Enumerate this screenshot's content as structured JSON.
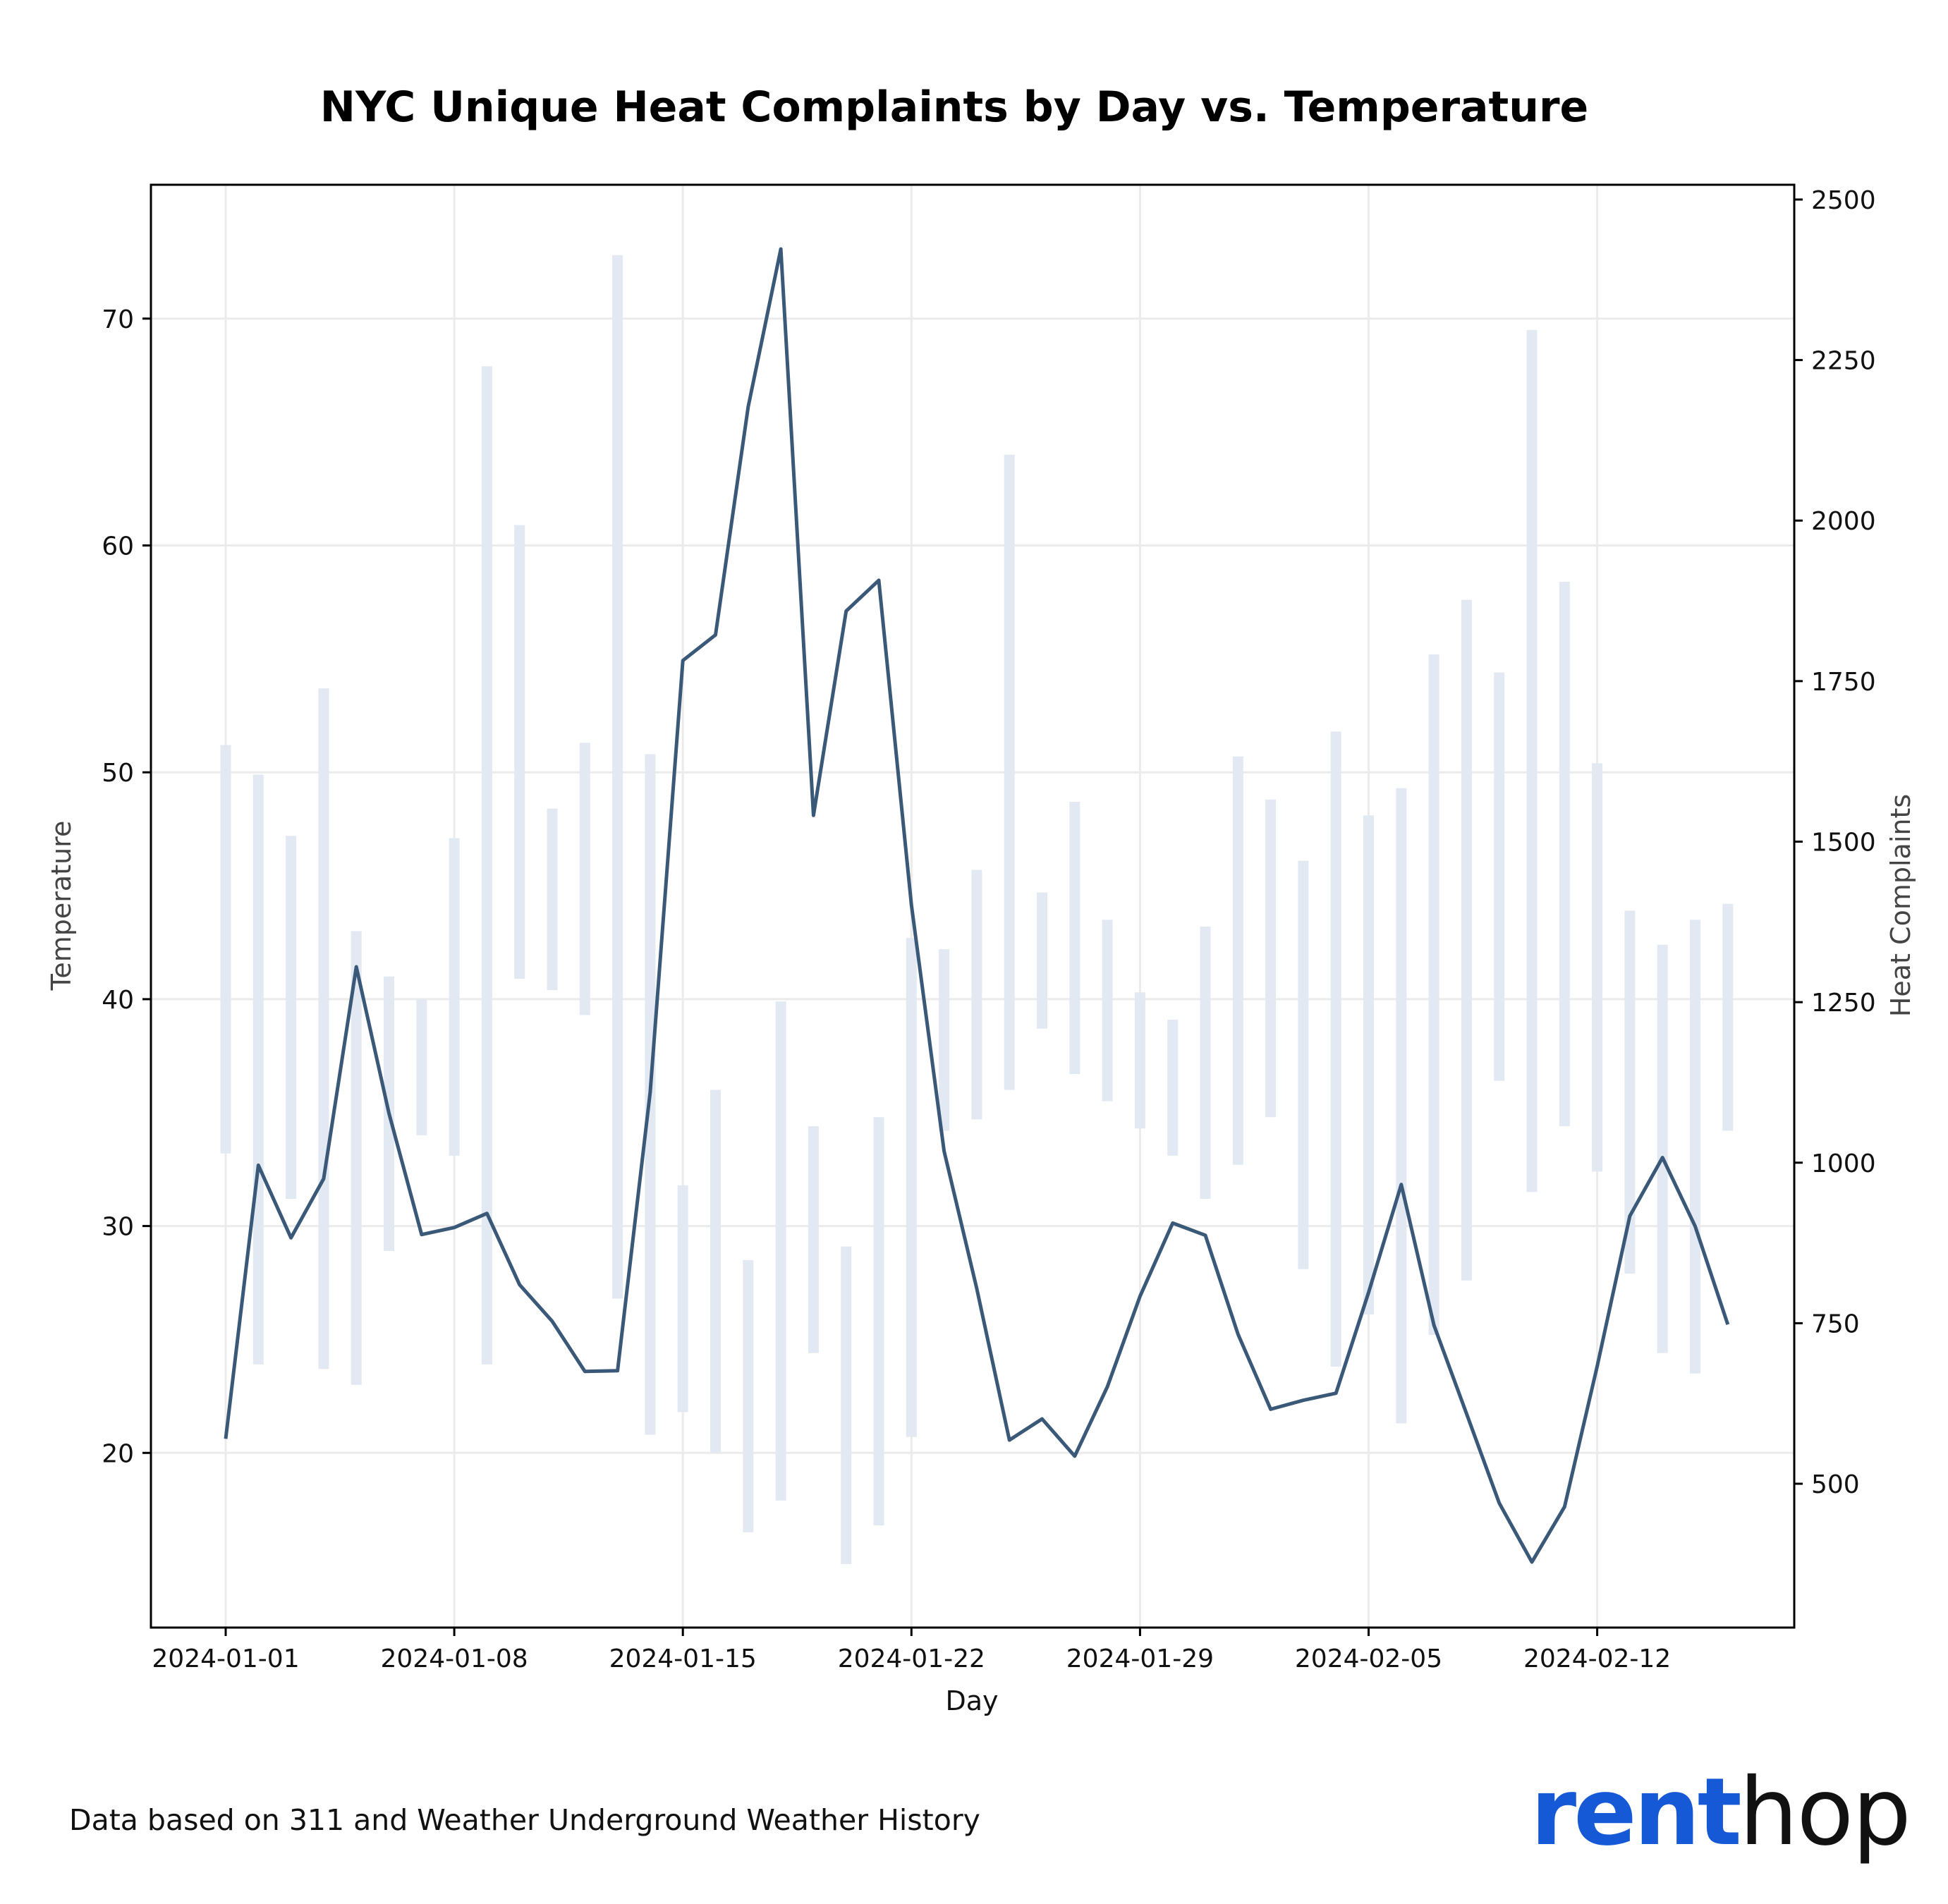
{
  "chart_data": {
    "type": "bar+line",
    "title": "NYC Unique Heat Complaints by Day vs. Temperature",
    "xlabel": "Day",
    "ylabel_left": "Temperature",
    "ylabel_right": "Heat Complaints",
    "source": "Data based on 311 and Weather Underground Weather History",
    "logo": {
      "part1": "rent",
      "part2": "hop",
      "color_part1": "#1559d6",
      "color_part2": "#111111"
    },
    "x_ticks": [
      "2024-01-01",
      "2024-01-08",
      "2024-01-15",
      "2024-01-22",
      "2024-01-29",
      "2024-02-05",
      "2024-02-12"
    ],
    "y_left_ticks": [
      20,
      30,
      40,
      50,
      60,
      70
    ],
    "y_right_ticks": [
      500,
      750,
      1000,
      1250,
      1500,
      1750,
      2000,
      2250,
      2500
    ],
    "ylim_left": [
      12.3,
      75.9
    ],
    "ylim_right": [
      276,
      2523
    ],
    "x_start_date": "2024-01-01",
    "grid": true,
    "colors": {
      "line": "#3a5878",
      "bars": "#e3e9f2",
      "grid": "#ebebeb",
      "axes": "#000000"
    },
    "dates": [
      "2024-01-01",
      "2024-01-02",
      "2024-01-03",
      "2024-01-04",
      "2024-01-05",
      "2024-01-06",
      "2024-01-07",
      "2024-01-08",
      "2024-01-09",
      "2024-01-10",
      "2024-01-11",
      "2024-01-12",
      "2024-01-13",
      "2024-01-14",
      "2024-01-15",
      "2024-01-16",
      "2024-01-17",
      "2024-01-18",
      "2024-01-19",
      "2024-01-20",
      "2024-01-21",
      "2024-01-22",
      "2024-01-23",
      "2024-01-24",
      "2024-01-25",
      "2024-01-26",
      "2024-01-27",
      "2024-01-28",
      "2024-01-29",
      "2024-01-30",
      "2024-01-31",
      "2024-02-01",
      "2024-02-02",
      "2024-02-03",
      "2024-02-04",
      "2024-02-05",
      "2024-02-06",
      "2024-02-07",
      "2024-02-08",
      "2024-02-09",
      "2024-02-10",
      "2024-02-11",
      "2024-02-12",
      "2024-02-13",
      "2024-02-14",
      "2024-02-15",
      "2024-02-16"
    ],
    "temperature_ranges": [
      [
        33.2,
        51.2
      ],
      [
        23.9,
        49.9
      ],
      [
        31.2,
        47.2
      ],
      [
        23.7,
        53.7
      ],
      [
        23.0,
        43.0
      ],
      [
        28.9,
        41.0
      ],
      [
        34.0,
        40.0
      ],
      [
        33.1,
        47.1
      ],
      [
        23.9,
        67.9
      ],
      [
        40.9,
        60.9
      ],
      [
        40.4,
        48.4
      ],
      [
        39.3,
        51.3
      ],
      [
        26.8,
        72.8
      ],
      [
        20.8,
        50.8
      ],
      [
        21.8,
        31.8
      ],
      [
        20.0,
        36.0
      ],
      [
        16.5,
        28.5
      ],
      [
        17.9,
        39.9
      ],
      [
        24.4,
        34.4
      ],
      [
        15.1,
        29.1
      ],
      [
        16.8,
        34.8
      ],
      [
        20.7,
        42.7
      ],
      [
        34.2,
        42.2
      ],
      [
        34.7,
        45.7
      ],
      [
        36.0,
        64.0
      ],
      [
        38.7,
        44.7
      ],
      [
        36.7,
        48.7
      ],
      [
        35.5,
        43.5
      ],
      [
        34.3,
        40.3
      ],
      [
        33.1,
        39.1
      ],
      [
        31.2,
        43.2
      ],
      [
        32.7,
        50.7
      ],
      [
        34.8,
        48.8
      ],
      [
        28.1,
        46.1
      ],
      [
        23.8,
        51.8
      ],
      [
        26.1,
        48.1
      ],
      [
        21.3,
        49.3
      ],
      [
        25.2,
        55.2
      ],
      [
        27.6,
        57.6
      ],
      [
        36.4,
        54.4
      ],
      [
        31.5,
        69.5
      ],
      [
        34.4,
        58.4
      ],
      [
        32.4,
        50.4
      ],
      [
        27.9,
        43.9
      ],
      [
        24.4,
        42.4
      ],
      [
        23.5,
        43.5
      ],
      [
        34.2,
        44.2
      ]
    ],
    "heat_complaints": [
      570,
      996,
      883,
      975,
      1305,
      1077,
      888,
      899,
      921,
      810,
      753,
      675,
      676,
      1110,
      1782,
      1822,
      2177,
      2423,
      1541,
      1859,
      1907,
      1401,
      1018,
      804,
      568,
      601,
      543,
      651,
      792,
      906,
      887,
      733,
      616,
      630,
      641,
      798,
      966,
      747,
      609,
      470,
      378,
      464,
      683,
      917,
      1008,
      901,
      748
    ]
  }
}
